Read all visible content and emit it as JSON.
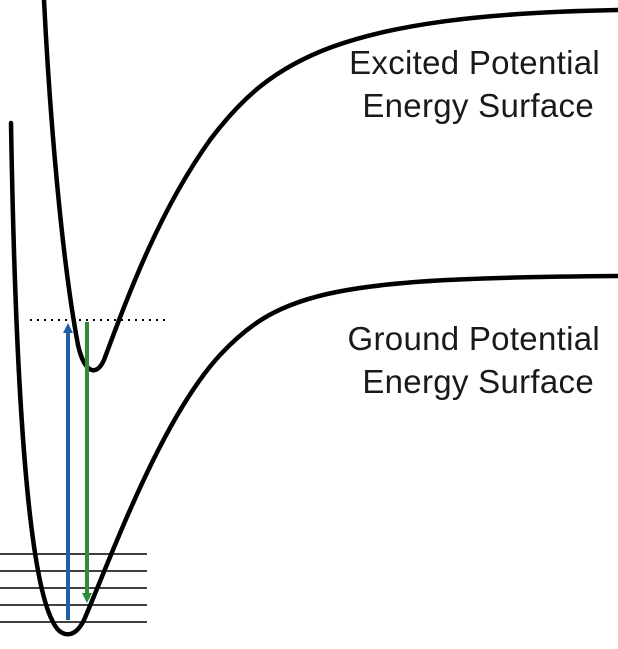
{
  "labels": {
    "excited": {
      "line1": "Excited Potential",
      "line2": "Energy Surface"
    },
    "ground": {
      "line1": "Ground Potential",
      "line2": "Energy Surface"
    }
  },
  "colors": {
    "curve": "#000000",
    "absorption_arrow": "#1f5fa8",
    "emission_arrow": "#2e8b3a",
    "vibrational_levels": "#000000",
    "dotted_line": "#000000"
  }
}
